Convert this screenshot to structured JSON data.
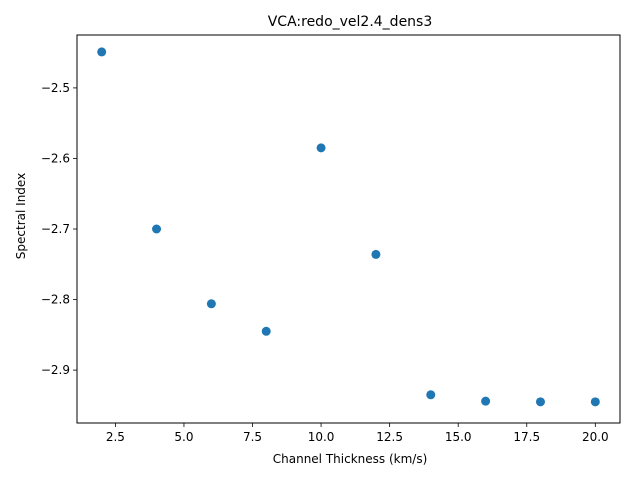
{
  "chart_data": {
    "type": "scatter",
    "title": "VCA:redo_vel2.4_dens3",
    "xlabel": "Channel Thickness (km/s)",
    "ylabel": "Spectral Index",
    "xlim": [
      1.1,
      20.9
    ],
    "ylim": [
      -2.975,
      -2.425
    ],
    "xticks": [
      2.5,
      5.0,
      7.5,
      10.0,
      12.5,
      15.0,
      17.5,
      20.0
    ],
    "xtick_labels": [
      "2.5",
      "5.0",
      "7.5",
      "10.0",
      "12.5",
      "15.0",
      "17.5",
      "20.0"
    ],
    "yticks": [
      -2.5,
      -2.6,
      -2.7,
      -2.8,
      -2.9
    ],
    "ytick_labels": [
      "−2.5",
      "−2.6",
      "−2.7",
      "−2.8",
      "−2.9"
    ],
    "grid": false,
    "color": "#1f77b4",
    "points": [
      {
        "x": 2.0,
        "y": -2.449
      },
      {
        "x": 4.0,
        "y": -2.7
      },
      {
        "x": 6.0,
        "y": -2.806
      },
      {
        "x": 8.0,
        "y": -2.845
      },
      {
        "x": 10.0,
        "y": -2.585
      },
      {
        "x": 12.0,
        "y": -2.736
      },
      {
        "x": 14.0,
        "y": -2.935
      },
      {
        "x": 16.0,
        "y": -2.944
      },
      {
        "x": 18.0,
        "y": -2.945
      },
      {
        "x": 20.0,
        "y": -2.945
      }
    ]
  }
}
